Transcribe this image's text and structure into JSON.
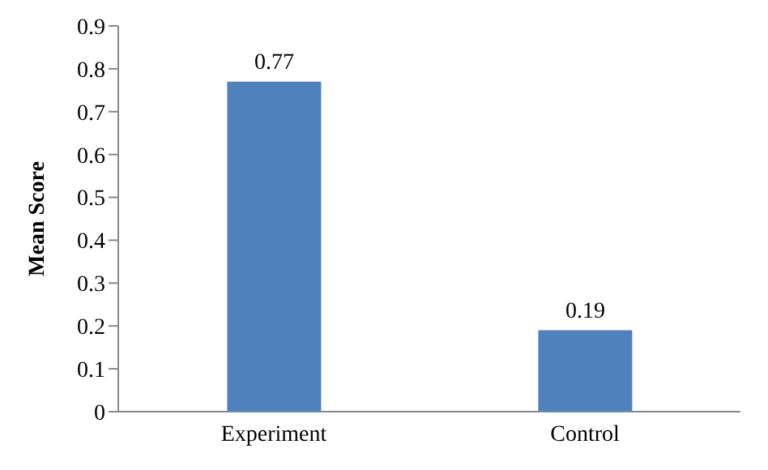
{
  "chart_data": {
    "type": "bar",
    "ylabel": "Mean Score",
    "categories": [
      "Experiment",
      "Control"
    ],
    "values": [
      0.77,
      0.19
    ],
    "color": "#4f81bd",
    "ylim": [
      0,
      0.9
    ],
    "yticks": [
      0,
      0.1,
      0.2,
      0.3,
      0.4,
      0.5,
      0.6,
      0.7,
      0.8,
      0.9
    ],
    "grid": false,
    "data_labels": true
  }
}
